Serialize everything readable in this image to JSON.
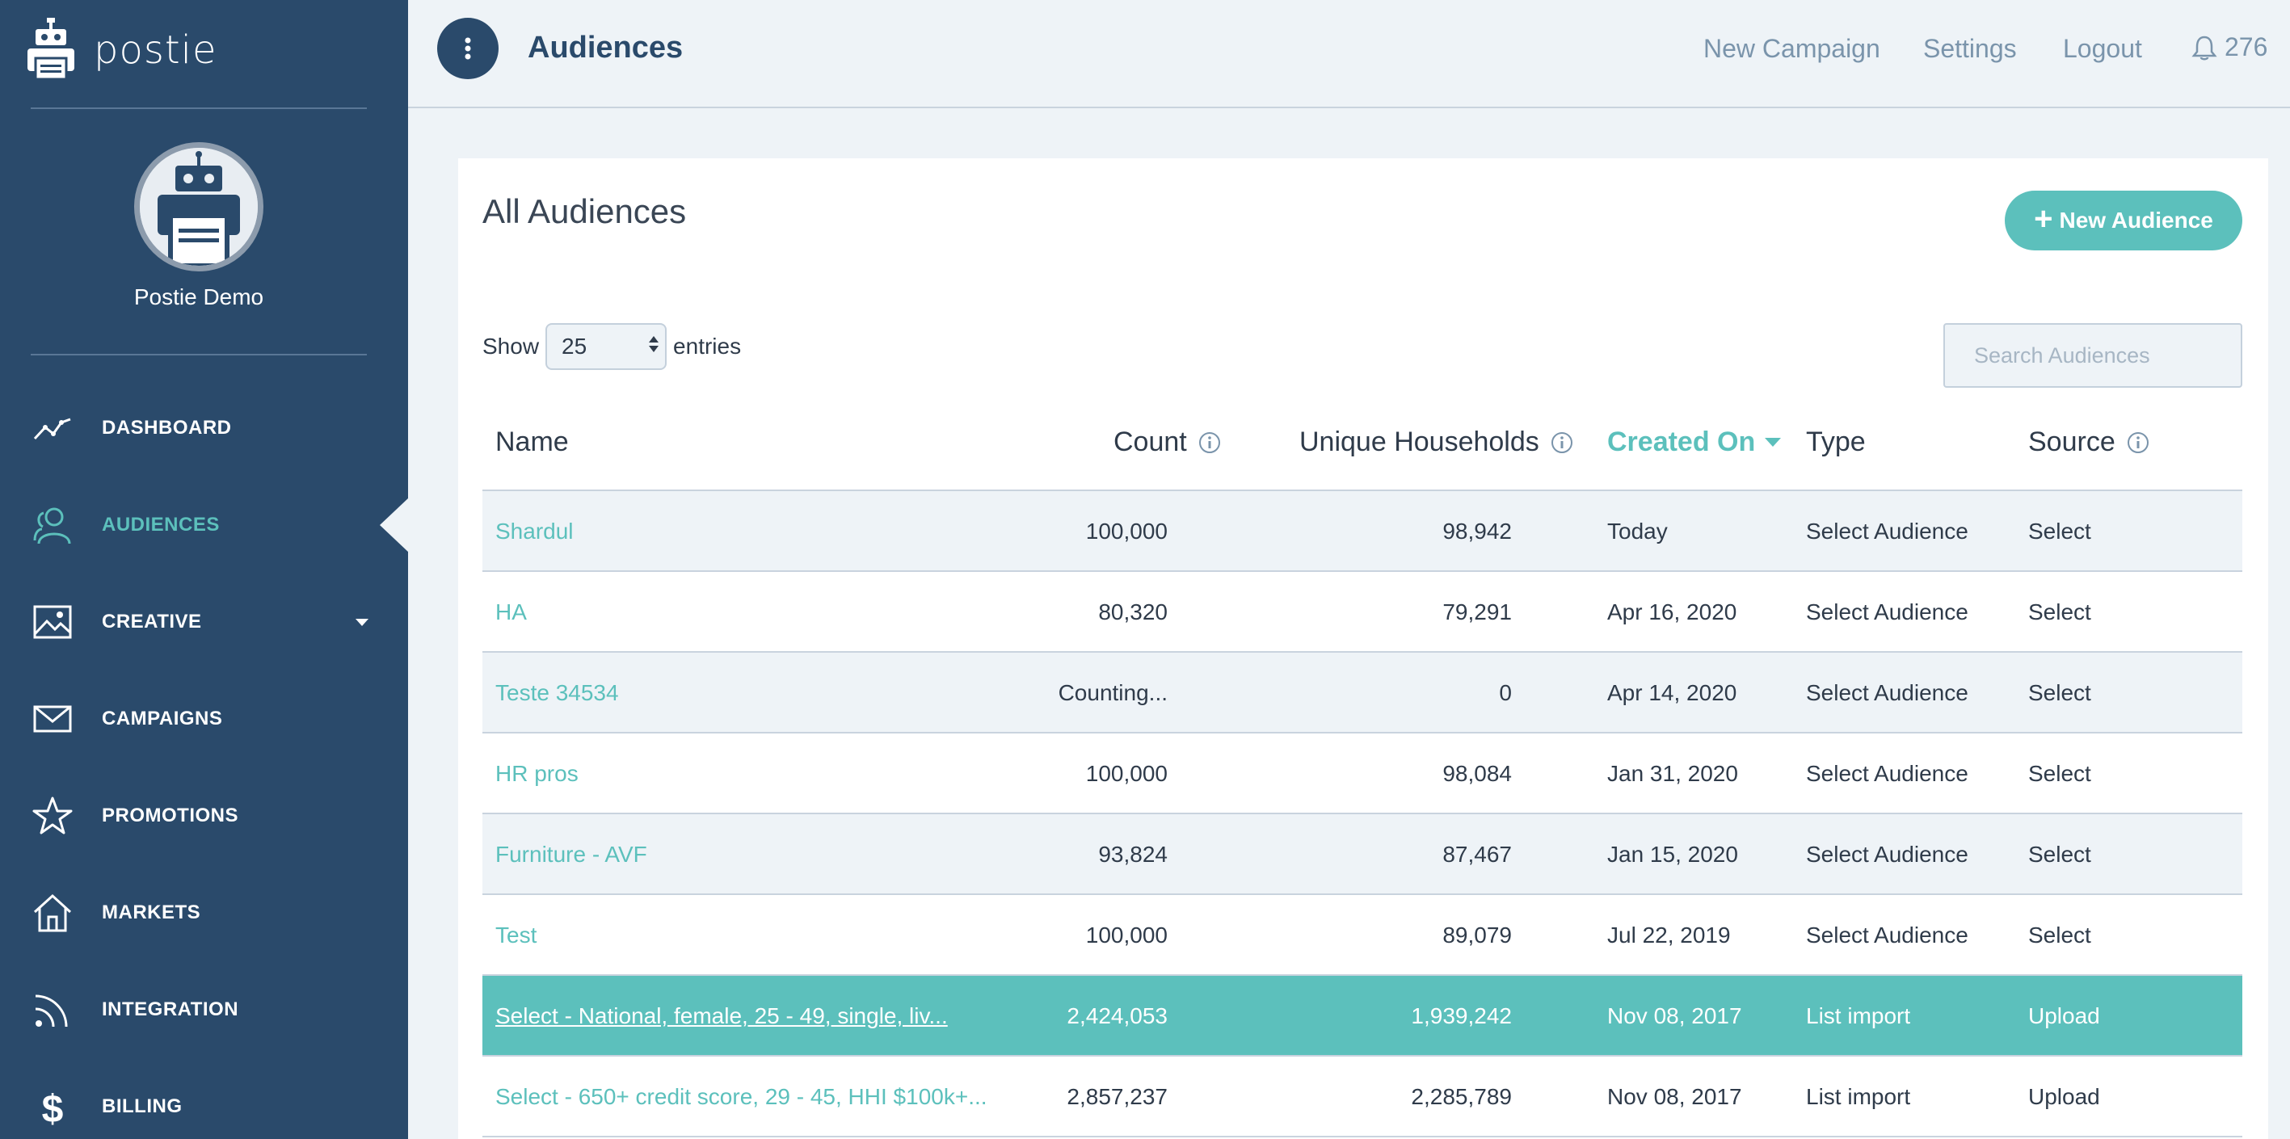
{
  "brand": {
    "name": "postie"
  },
  "user": {
    "name": "Postie Demo"
  },
  "nav": {
    "items": [
      {
        "label": "DASHBOARD",
        "icon": "chart-line-icon"
      },
      {
        "label": "AUDIENCES",
        "icon": "users-icon",
        "active": true
      },
      {
        "label": "CREATIVE",
        "icon": "image-icon",
        "has_caret": true
      },
      {
        "label": "CAMPAIGNS",
        "icon": "envelope-icon"
      },
      {
        "label": "PROMOTIONS",
        "icon": "star-icon"
      },
      {
        "label": "MARKETS",
        "icon": "home-icon"
      },
      {
        "label": "INTEGRATION",
        "icon": "rss-icon"
      },
      {
        "label": "BILLING",
        "icon": "dollar-icon"
      }
    ]
  },
  "header": {
    "title": "Audiences",
    "links": {
      "new_campaign": "New Campaign",
      "settings": "Settings",
      "logout": "Logout"
    },
    "notifications": "276"
  },
  "card": {
    "title": "All Audiences",
    "new_button": "New Audience",
    "show_label": "Show",
    "entries_value": "25",
    "entries_label": "entries",
    "search_placeholder": "Search Audiences"
  },
  "table": {
    "columns": {
      "name": "Name",
      "count": "Count",
      "unique_households": "Unique Households",
      "created_on": "Created On",
      "type": "Type",
      "source": "Source"
    },
    "rows": [
      {
        "name": "Shardul",
        "count": "100,000",
        "uh": "98,942",
        "created": "Today",
        "type": "Select Audience",
        "source": "Select"
      },
      {
        "name": "HA",
        "count": "80,320",
        "uh": "79,291",
        "created": "Apr 16, 2020",
        "type": "Select Audience",
        "source": "Select"
      },
      {
        "name": "Teste 34534",
        "count": "Counting...",
        "uh": "0",
        "created": "Apr 14, 2020",
        "type": "Select Audience",
        "source": "Select"
      },
      {
        "name": "HR pros",
        "count": "100,000",
        "uh": "98,084",
        "created": "Jan 31, 2020",
        "type": "Select Audience",
        "source": "Select"
      },
      {
        "name": "Furniture - AVF",
        "count": "93,824",
        "uh": "87,467",
        "created": "Jan 15, 2020",
        "type": "Select Audience",
        "source": "Select"
      },
      {
        "name": "Test",
        "count": "100,000",
        "uh": "89,079",
        "created": "Jul 22, 2019",
        "type": "Select Audience",
        "source": "Select"
      },
      {
        "name": "Select - National, female, 25 - 49, single, liv...",
        "count": "2,424,053",
        "uh": "1,939,242",
        "created": "Nov 08, 2017",
        "type": "List import",
        "source": "Upload",
        "highlight": true
      },
      {
        "name": "Select - 650+ credit score, 29 - 45, HHI $100k+...",
        "count": "2,857,237",
        "uh": "2,285,789",
        "created": "Nov 08, 2017",
        "type": "List import",
        "source": "Upload"
      }
    ]
  },
  "colors": {
    "sidebar": "#2a4a6b",
    "accent": "#5cc0bc",
    "muted_link": "#7a94ab"
  }
}
